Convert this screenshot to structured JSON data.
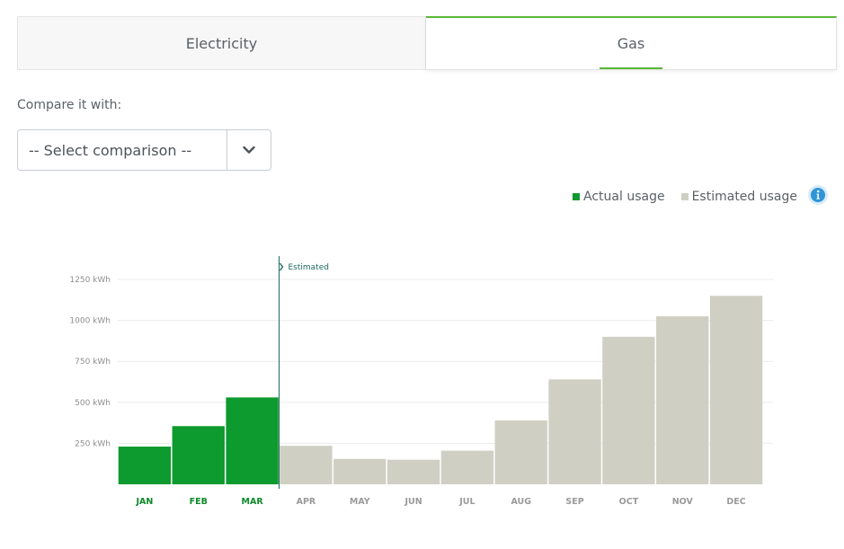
{
  "tabs": [
    {
      "label": "Electricity",
      "active": false
    },
    {
      "label": "Gas",
      "active": true
    }
  ],
  "compare": {
    "label": "Compare it with:",
    "selected": "-- Select comparison --"
  },
  "legend": {
    "actual": {
      "label": "Actual usage",
      "color": "#0d9a2e"
    },
    "estimated": {
      "label": "Estimated usage",
      "color": "#ceceC2"
    }
  },
  "chart_data": {
    "type": "bar",
    "title": "",
    "xlabel": "",
    "ylabel": "kWh",
    "ylim": [
      0,
      1250
    ],
    "yticks": [
      250,
      500,
      750,
      1000,
      1250
    ],
    "ytick_labels": [
      "250 kWh",
      "500 kWh",
      "750 kWh",
      "1000 kWh",
      "1250 kWh"
    ],
    "categories": [
      "JAN",
      "FEB",
      "MAR",
      "APR",
      "MAY",
      "JUN",
      "JUL",
      "AUG",
      "SEP",
      "OCT",
      "NOV",
      "DEC"
    ],
    "values": [
      230,
      355,
      530,
      235,
      155,
      150,
      205,
      390,
      640,
      900,
      1025,
      1150
    ],
    "status": [
      "actual",
      "actual",
      "actual",
      "estimated",
      "estimated",
      "estimated",
      "estimated",
      "estimated",
      "estimated",
      "estimated",
      "estimated",
      "estimated"
    ],
    "marker_label": "Estimated",
    "marker_after_index": 2,
    "colors": {
      "actual": "#0d9a2e",
      "estimated": "#cfcfc3",
      "marker": "#1c6b5e",
      "actual_label": "#0d8a2a",
      "estimated_label": "#9a9a9a",
      "grid": "#ececec",
      "tick": "#8e8e8e"
    }
  }
}
